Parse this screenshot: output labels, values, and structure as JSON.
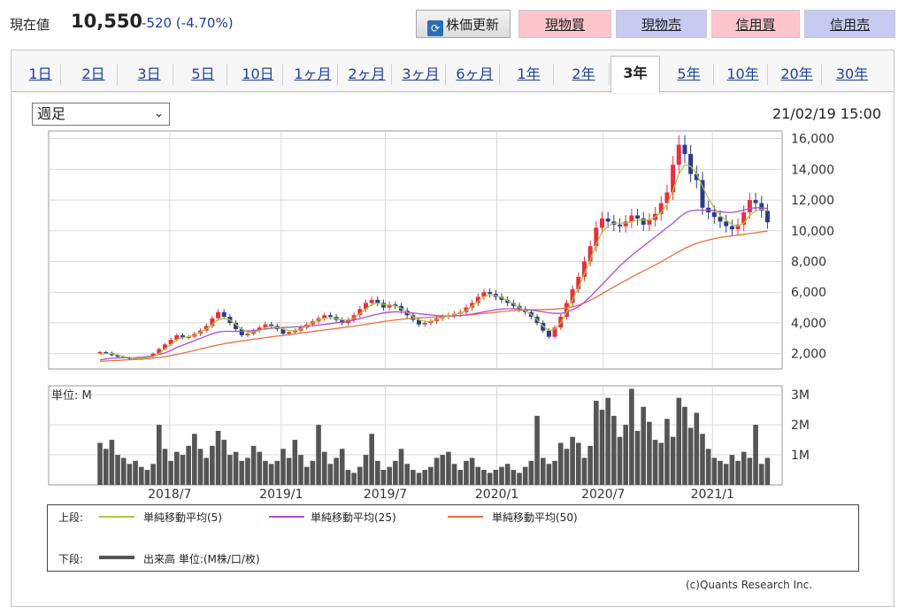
{
  "header": {
    "price_label": "現在値",
    "price_value": "10,550",
    "change": "-520 (-4.70%)",
    "refresh_label": "株価更新",
    "buttons": [
      "現物買",
      "現物売",
      "信用買",
      "信用売"
    ]
  },
  "tabs": [
    "1日",
    "2日",
    "3日",
    "5日",
    "10日",
    "1ヶ月",
    "2ヶ月",
    "3ヶ月",
    "6ヶ月",
    "1年",
    "2年",
    "3年",
    "5年",
    "10年",
    "20年",
    "30年"
  ],
  "active_tab": "3年",
  "select": {
    "value": "週足"
  },
  "datetime": "21/02/19 15:00",
  "volume_unit": "単位: M",
  "legend": {
    "upper_label": "上段:",
    "ma5": "単純移動平均(5)",
    "ma25": "単純移動平均(25)",
    "ma50": "単純移動平均(50)",
    "lower_label": "下段:",
    "volume": "出来高 単位:(M株/口/枚)"
  },
  "copyright": "(c)Quants Research Inc.",
  "colors": {
    "up": "#e8303f",
    "down": "#2a3b8f",
    "ma5": "#a9c93a",
    "ma25": "#b04ad8",
    "ma50": "#e8703a",
    "volume": "#555555"
  },
  "chart_data": [
    {
      "type": "candlestick",
      "title": "",
      "x_ticks": [
        "2018/7",
        "2019/1",
        "2019/7",
        "2020/1",
        "2020/7",
        "2021/1"
      ],
      "y_ticks": [
        "16,000",
        "14,000",
        "12,000",
        "10,000",
        "8,000",
        "6,000",
        "4,000",
        "2,000"
      ],
      "ylim": [
        1000,
        16500
      ],
      "close_approx": [
        2100,
        2050,
        1900,
        1800,
        1750,
        1700,
        1650,
        1700,
        1800,
        2000,
        2300,
        2600,
        2900,
        3200,
        3050,
        3100,
        3300,
        3500,
        3800,
        4300,
        4700,
        4400,
        4000,
        3600,
        3200,
        3300,
        3500,
        3700,
        3900,
        3800,
        3600,
        3300,
        3400,
        3500,
        3700,
        3900,
        4100,
        4300,
        4500,
        4400,
        4200,
        4000,
        4200,
        4500,
        4900,
        5300,
        5500,
        5300,
        5000,
        5200,
        5100,
        4800,
        4500,
        4200,
        3900,
        4000,
        4100,
        4300,
        4400,
        4500,
        4600,
        4700,
        5000,
        5300,
        5700,
        6000,
        5900,
        5700,
        5500,
        5300,
        5100,
        4900,
        4700,
        4400,
        4000,
        3500,
        3100,
        3700,
        4400,
        5300,
        6200,
        7000,
        8000,
        9000,
        10200,
        10800,
        10600,
        10400,
        10300,
        10600,
        11000,
        10800,
        10400,
        10700,
        11100,
        11800,
        12500,
        14300,
        15600,
        15000,
        13700,
        13300,
        11500,
        11200,
        10900,
        10600,
        10300,
        10100,
        10400,
        11200,
        12000,
        11800,
        11300,
        10550
      ],
      "ma5_approx": [
        1950,
        2000,
        2000,
        1900,
        1800,
        1750,
        1700,
        1700,
        1750,
        1800,
        2000,
        2300,
        2600,
        2900,
        3050,
        3100,
        3200,
        3400,
        3600,
        3900,
        4200,
        4300,
        4200,
        3900,
        3600,
        3400,
        3400,
        3500,
        3700,
        3800,
        3700,
        3600,
        3500,
        3500,
        3600,
        3800,
        4000,
        4200,
        4300,
        4350,
        4300,
        4200,
        4200,
        4300,
        4600,
        4900,
        5200,
        5300,
        5200,
        5150,
        5100,
        4950,
        4700,
        4400,
        4200,
        4100,
        4100,
        4200,
        4350,
        4450,
        4550,
        4650,
        4800,
        5100,
        5400,
        5700,
        5850,
        5800,
        5650,
        5450,
        5250,
        5000,
        4800,
        4550,
        4200,
        3800,
        3500,
        3600,
        4000,
        4700,
        5500,
        6300,
        7200,
        8100,
        9100,
        9900,
        10300,
        10500,
        10500,
        10500,
        10600,
        10700,
        10700,
        10700,
        10900,
        11200,
        11700,
        12600,
        13700,
        14300,
        14200,
        13700,
        12900,
        12100,
        11500,
        11000,
        10700,
        10400,
        10300,
        10500,
        11000,
        11300,
        11400,
        11300
      ],
      "ma25_approx": [
        1600,
        1650,
        1700,
        1720,
        1730,
        1740,
        1750,
        1770,
        1800,
        1850,
        1950,
        2050,
        2200,
        2400,
        2550,
        2700,
        2850,
        3000,
        3150,
        3300,
        3400,
        3450,
        3450,
        3450,
        3450,
        3480,
        3500,
        3550,
        3600,
        3650,
        3680,
        3700,
        3720,
        3740,
        3760,
        3790,
        3820,
        3860,
        3900,
        3950,
        4000,
        4050,
        4100,
        4180,
        4270,
        4380,
        4480,
        4570,
        4650,
        4700,
        4720,
        4710,
        4680,
        4640,
        4600,
        4560,
        4520,
        4480,
        4460,
        4450,
        4460,
        4480,
        4520,
        4580,
        4650,
        4730,
        4800,
        4860,
        4900,
        4920,
        4920,
        4900,
        4870,
        4830,
        4780,
        4720,
        4660,
        4620,
        4620,
        4700,
        4850,
        5050,
        5350,
        5700,
        6100,
        6500,
        6900,
        7300,
        7700,
        8050,
        8400,
        8700,
        9000,
        9300,
        9600,
        9900,
        10200,
        10500,
        10850,
        11150,
        11300,
        11350,
        11350,
        11350,
        11300,
        11250,
        11200,
        11200,
        11250,
        11350,
        11450,
        11500,
        11500,
        11450
      ],
      "ma50_approx": [
        1500,
        1520,
        1540,
        1560,
        1580,
        1600,
        1620,
        1640,
        1670,
        1700,
        1750,
        1800,
        1870,
        1950,
        2030,
        2120,
        2210,
        2300,
        2390,
        2480,
        2560,
        2640,
        2710,
        2770,
        2830,
        2880,
        2940,
        2990,
        3040,
        3090,
        3140,
        3190,
        3240,
        3290,
        3340,
        3390,
        3440,
        3490,
        3540,
        3590,
        3640,
        3690,
        3740,
        3790,
        3850,
        3910,
        3970,
        4030,
        4090,
        4140,
        4190,
        4230,
        4270,
        4300,
        4330,
        4350,
        4370,
        4390,
        4410,
        4430,
        4450,
        4480,
        4510,
        4540,
        4580,
        4620,
        4660,
        4700,
        4740,
        4770,
        4800,
        4820,
        4840,
        4850,
        4860,
        4870,
        4880,
        4900,
        4930,
        4980,
        5050,
        5150,
        5300,
        5480,
        5680,
        5900,
        6120,
        6340,
        6560,
        6770,
        6980,
        7180,
        7380,
        7580,
        7780,
        7980,
        8200,
        8420,
        8640,
        8860,
        9030,
        9180,
        9300,
        9400,
        9480,
        9560,
        9620,
        9670,
        9720,
        9770,
        9820,
        9870,
        9930,
        9980
      ]
    },
    {
      "type": "bar",
      "title": "",
      "ylabel": "単位: M",
      "y_ticks": [
        "3M",
        "2M",
        "1M"
      ],
      "ylim": [
        0,
        3.3
      ],
      "values_approx": [
        1.4,
        1.2,
        1.5,
        1.0,
        0.9,
        0.7,
        0.8,
        0.6,
        0.5,
        0.7,
        2.0,
        1.2,
        0.8,
        1.1,
        1.0,
        1.3,
        1.7,
        1.2,
        0.9,
        1.3,
        1.8,
        1.5,
        1.0,
        1.1,
        0.8,
        0.9,
        1.3,
        1.1,
        0.8,
        0.7,
        0.8,
        1.2,
        0.9,
        1.5,
        1.0,
        0.6,
        0.8,
        2.0,
        1.1,
        0.7,
        0.9,
        1.2,
        0.5,
        0.4,
        0.6,
        1.0,
        1.7,
        0.8,
        0.5,
        0.6,
        0.8,
        1.2,
        0.7,
        0.5,
        0.4,
        0.5,
        0.6,
        0.9,
        1.0,
        1.1,
        0.7,
        0.5,
        0.8,
        0.9,
        0.6,
        0.5,
        0.4,
        0.5,
        0.6,
        0.7,
        0.5,
        0.4,
        0.6,
        0.8,
        2.3,
        0.9,
        0.7,
        0.8,
        1.4,
        1.2,
        1.6,
        1.4,
        0.9,
        1.3,
        2.8,
        2.5,
        2.9,
        2.3,
        1.6,
        2.0,
        3.2,
        1.8,
        2.6,
        2.1,
        1.5,
        1.4,
        2.2,
        1.6,
        2.9,
        2.6,
        1.9,
        2.4,
        1.7,
        1.2,
        0.9,
        0.8,
        0.7,
        1.0,
        0.8,
        1.1,
        0.9,
        2.0,
        0.7,
        0.9
      ]
    }
  ]
}
